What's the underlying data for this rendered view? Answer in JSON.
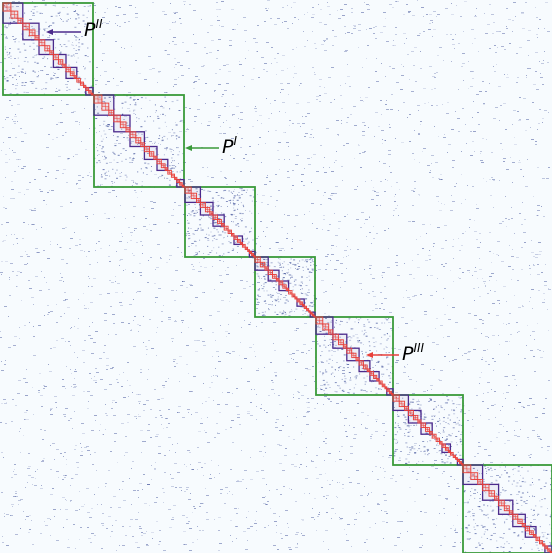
{
  "colors": {
    "background": "#f7fbfe",
    "cell": "#2c3f8f",
    "level1": "#3a9a3a",
    "level2": "#4b2a8c",
    "level3": "#e8403a"
  },
  "labels": [
    {
      "id": "p1",
      "base": "P",
      "sup": "I",
      "color_key": "level1"
    },
    {
      "id": "p2",
      "base": "P",
      "sup": "II",
      "color_key": "level2"
    },
    {
      "id": "p3",
      "base": "P",
      "sup": "III",
      "color_key": "level3"
    }
  ]
}
